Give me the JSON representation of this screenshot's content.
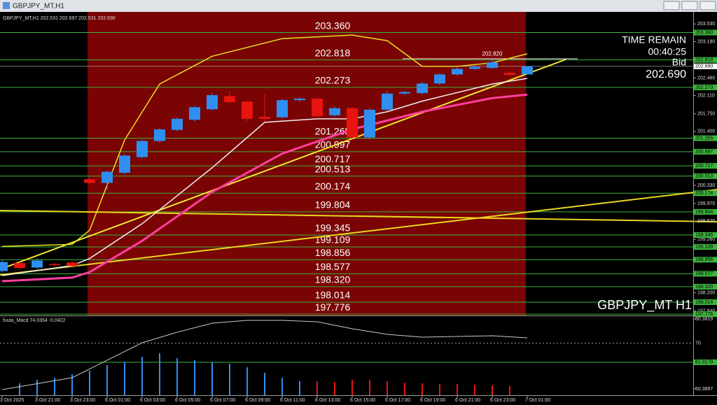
{
  "window": {
    "title": "GBPJPY_MT,H1"
  },
  "chart_data": [
    {
      "type": "candlestick",
      "title": "GBPJPY_MT,H1 202.531 202.697 202.531 202.690",
      "symbol_label": "GBPJPY_MT H1",
      "timer": {
        "title": "TIME REMAIN",
        "time": "00:40:25",
        "bid_title": "Bid",
        "bid": "202.690"
      },
      "categories": [
        "3 Oct 2025",
        null,
        "3 Oct 21:00",
        null,
        "3 Oct 23:00",
        null,
        "6 Oct 01:00",
        null,
        "6 Oct 03:00",
        null,
        "6 Oct 05:00",
        null,
        "6 Oct 07:00",
        null,
        "6 Oct 09:00",
        null,
        "6 Oct 11:00",
        null,
        "6 Oct 13:00",
        null,
        "6 Oct 15:00",
        null,
        "6 Oct 17:00",
        null,
        "6 Oct 19:00",
        null,
        "6 Oct 21:00",
        null,
        "6 Oct 23:00",
        null,
        "7 Oct 01:00"
      ],
      "open": [
        198.63,
        198.79,
        198.7,
        198.77,
        198.8,
        200.45,
        200.38,
        200.58,
        200.89,
        201.21,
        201.43,
        201.63,
        201.84,
        202.1,
        201.99,
        201.69,
        201.68,
        202.02,
        202.05,
        201.72,
        201.86,
        201.28,
        201.83,
        202.15,
        202.16,
        202.35,
        202.53,
        202.64,
        202.66,
        202.56,
        202.531
      ],
      "high": [
        198.85,
        198.82,
        198.88,
        198.8,
        198.83,
        200.47,
        200.62,
        200.95,
        201.24,
        201.47,
        201.68,
        201.91,
        202.16,
        202.2,
        202.01,
        202.14,
        202.05,
        202.08,
        202.08,
        201.89,
        201.89,
        201.86,
        202.2,
        202.21,
        202.38,
        202.56,
        202.67,
        202.71,
        202.82,
        202.6,
        202.697
      ],
      "low": [
        198.6,
        198.66,
        198.67,
        198.72,
        198.7,
        200.35,
        200.24,
        200.55,
        200.86,
        201.18,
        201.4,
        201.6,
        201.81,
        201.95,
        201.6,
        201.6,
        201.65,
        201.99,
        201.67,
        201.69,
        201.25,
        201.25,
        201.8,
        202.12,
        202.13,
        202.32,
        202.5,
        202.61,
        202.63,
        202.49,
        202.531
      ],
      "close": [
        198.81,
        198.69,
        198.84,
        198.75,
        198.73,
        200.38,
        200.6,
        200.92,
        201.21,
        201.44,
        201.65,
        201.88,
        202.12,
        201.98,
        201.65,
        201.65,
        202.02,
        202.05,
        201.7,
        201.86,
        201.28,
        201.83,
        202.15,
        202.18,
        202.35,
        202.53,
        202.64,
        202.68,
        202.77,
        202.52,
        202.69
      ],
      "up_color": "#2f8ff0",
      "down_color": "#e8140f",
      "ylim": [
        197.75,
        203.77
      ],
      "yticks": [
        {
          "value": 203.53,
          "label": "203.530"
        },
        {
          "value": 203.18,
          "label": "203.180"
        },
        {
          "value": 202.46,
          "label": "202.460"
        },
        {
          "value": 202.11,
          "label": "202.110"
        },
        {
          "value": 201.75,
          "label": "201.750"
        },
        {
          "value": 201.4,
          "label": "201.400"
        },
        {
          "value": 200.33,
          "label": "200.330"
        },
        {
          "value": 199.97,
          "label": "199.970"
        },
        {
          "value": 199.62,
          "label": "199.620"
        },
        {
          "value": 199.26,
          "label": "199.260"
        },
        {
          "value": 198.2,
          "label": "198.200"
        },
        {
          "value": 197.84,
          "label": "197.840"
        }
      ],
      "levels": [
        {
          "value": 203.36,
          "label": "203.360"
        },
        {
          "value": 202.818,
          "label": "202.818"
        },
        {
          "value": 202.273,
          "label": "202.273"
        },
        {
          "value": 201.265,
          "label": "201.265"
        },
        {
          "value": 200.997,
          "label": "200.997"
        },
        {
          "value": 200.717,
          "label": "200.717"
        },
        {
          "value": 200.513,
          "label": "200.513"
        },
        {
          "value": 200.174,
          "label": "200.174"
        },
        {
          "value": 199.804,
          "label": "199.804"
        },
        {
          "value": 199.345,
          "label": "199.345"
        },
        {
          "value": 199.109,
          "label": "199.109"
        },
        {
          "value": 198.856,
          "label": "198.856"
        },
        {
          "value": 198.577,
          "label": "198.577"
        },
        {
          "value": 198.32,
          "label": "198.320"
        },
        {
          "value": 198.014,
          "label": "198.014"
        },
        {
          "value": 197.776,
          "label": "197.776"
        }
      ],
      "level_color": "#3cb43c",
      "current_price": {
        "value": 202.69,
        "label": "202.690"
      },
      "high_marker": {
        "value": 202.82,
        "label": "202.820"
      },
      "overlays": [
        {
          "color": "#ff3fa0",
          "width": 3,
          "x": [
            0,
            4,
            5,
            8,
            12,
            16,
            20,
            24,
            28,
            30
          ],
          "values": [
            198.43,
            198.5,
            198.61,
            199.23,
            200.2,
            200.96,
            201.44,
            201.79,
            202.06,
            202.13
          ]
        },
        {
          "color": "#f0f0f0",
          "width": 1.5,
          "x": [
            0,
            4,
            5,
            8,
            12,
            15,
            18,
            20,
            22,
            24,
            28,
            30
          ],
          "values": [
            198.54,
            198.74,
            198.88,
            199.57,
            200.68,
            201.58,
            201.65,
            201.65,
            201.79,
            202.0,
            202.34,
            202.45
          ]
        },
        {
          "color": "#e8e020",
          "width": 1.5,
          "x": [
            0,
            4,
            5,
            7,
            9,
            12,
            16,
            20,
            22,
            24,
            26,
            28,
            30
          ],
          "values": [
            199.12,
            199.16,
            199.44,
            201.23,
            202.34,
            202.89,
            203.24,
            203.31,
            203.2,
            202.69,
            202.69,
            202.76,
            202.94
          ]
        }
      ]
    },
    {
      "type": "macd",
      "title": "fuuta_Macd 74.0354 -0.0422",
      "ylim": [
        47.69,
        81.28
      ],
      "yticks": [
        80.3819,
        50.3897
      ],
      "levels": [
        {
          "value": 70,
          "color": "#9a9a9a",
          "dotted": true
        },
        {
          "value": 61.8179,
          "color": "#3cb43c",
          "dotted": false
        }
      ],
      "bars": [
        {
          "color": "#2f8ff0",
          "x": [
            1,
            2,
            3,
            4,
            5,
            6,
            7,
            8,
            9,
            10,
            11,
            12,
            13,
            14,
            15,
            16,
            17
          ],
          "values": [
            52.79,
            54.29,
            55.19,
            56.69,
            58.19,
            60.58,
            62.08,
            64.18,
            65.68,
            63.58,
            62.68,
            61.78,
            61.18,
            59.68,
            57.28,
            55.19,
            53.69
          ]
        },
        {
          "color": "#e8140f",
          "x": [
            18,
            19,
            20,
            21,
            22,
            23,
            24,
            25,
            26,
            27,
            28,
            29
          ],
          "values": [
            53.69,
            53.39,
            54.29,
            54.29,
            53.69,
            53.09,
            52.79,
            52.49,
            52.49,
            52.19,
            51.89,
            51.59
          ]
        }
      ],
      "line": {
        "color": "#c8c8c8",
        "x": [
          0,
          4,
          6,
          8,
          10,
          12,
          14,
          16,
          18,
          20,
          22,
          24,
          28,
          30
        ],
        "values": [
          50.09,
          55.19,
          62.69,
          70.18,
          74.68,
          78.58,
          79.78,
          79.78,
          79.18,
          76.18,
          73.78,
          72.58,
          73.18,
          72.28
        ]
      }
    }
  ]
}
